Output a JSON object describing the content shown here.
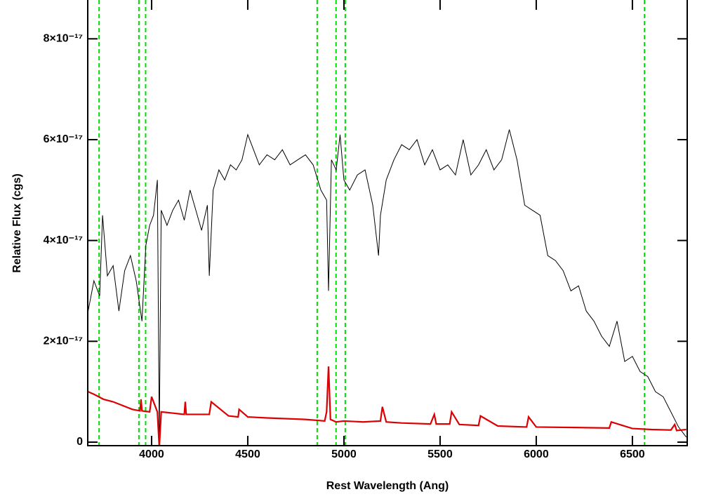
{
  "chart_data": {
    "type": "line",
    "xlabel": "Rest Wavelength (Ang)",
    "ylabel": "Relative Flux (cgs)",
    "xlim": [
      3668,
      6785
    ],
    "ylim": [
      -7e-19,
      8.77e-17
    ],
    "xticks": [
      4000,
      4500,
      5000,
      5500,
      6000,
      6500
    ],
    "yticks": [
      0,
      {
        "value": 2e-17,
        "label": "2×10⁻¹⁷"
      },
      {
        "value": 4e-17,
        "label": "4×10⁻¹⁷"
      },
      {
        "value": 6e-17,
        "label": "6×10⁻¹⁷"
      },
      {
        "value": 8e-17,
        "label": "8×10⁻¹⁷"
      }
    ],
    "line_markers": {
      "color": "#00dd00",
      "x": [
        3727,
        3934,
        3969,
        4861,
        4959,
        5007,
        6563
      ]
    },
    "series": [
      {
        "color": "#000000",
        "x": [
          3670,
          3700,
          3730,
          3745,
          3770,
          3800,
          3830,
          3860,
          3890,
          3920,
          3950,
          3970,
          3990,
          4010,
          4030,
          4040,
          4050,
          4080,
          4110,
          4140,
          4170,
          4200,
          4230,
          4260,
          4290,
          4300,
          4320,
          4350,
          4380,
          4410,
          4440,
          4470,
          4500,
          4530,
          4560,
          4600,
          4640,
          4680,
          4720,
          4760,
          4800,
          4840,
          4880,
          4910,
          4920,
          4935,
          4960,
          4980,
          5000,
          5030,
          5070,
          5110,
          5150,
          5180,
          5190,
          5220,
          5260,
          5300,
          5340,
          5380,
          5420,
          5460,
          5500,
          5540,
          5580,
          5620,
          5660,
          5700,
          5740,
          5780,
          5820,
          5860,
          5900,
          5940,
          5980,
          6020,
          6060,
          6100,
          6140,
          6180,
          6220,
          6260,
          6300,
          6340,
          6380,
          6420,
          6460,
          6500,
          6540,
          6580,
          6620,
          6660,
          6700,
          6740,
          6780
        ],
        "values": [
          2.6e-17,
          3.2e-17,
          2.9e-17,
          4.5e-17,
          3.3e-17,
          3.5e-17,
          2.6e-17,
          3.4e-17,
          3.7e-17,
          3.2e-17,
          2.4e-17,
          3.9e-17,
          4.3e-17,
          4.5e-17,
          5.2e-17,
          1e-18,
          4.6e-17,
          4.3e-17,
          4.6e-17,
          4.8e-17,
          4.4e-17,
          5e-17,
          4.6e-17,
          4.2e-17,
          4.7e-17,
          3.3e-17,
          5e-17,
          5.4e-17,
          5.2e-17,
          5.5e-17,
          5.4e-17,
          5.6e-17,
          6.1e-17,
          5.8e-17,
          5.5e-17,
          5.7e-17,
          5.6e-17,
          5.8e-17,
          5.5e-17,
          5.6e-17,
          5.7e-17,
          5.5e-17,
          5e-17,
          4.8e-17,
          3e-17,
          5.6e-17,
          5.4e-17,
          6.1e-17,
          5.2e-17,
          5e-17,
          5.3e-17,
          5.4e-17,
          4.7e-17,
          3.7e-17,
          4.5e-17,
          5.2e-17,
          5.6e-17,
          5.9e-17,
          5.8e-17,
          6e-17,
          5.5e-17,
          5.8e-17,
          5.4e-17,
          5.5e-17,
          5.3e-17,
          6e-17,
          5.3e-17,
          5.5e-17,
          5.8e-17,
          5.4e-17,
          5.6e-17,
          6.2e-17,
          5.6e-17,
          4.7e-17,
          4.6e-17,
          4.5e-17,
          3.7e-17,
          3.6e-17,
          3.4e-17,
          3e-17,
          3.1e-17,
          2.6e-17,
          2.4e-17,
          2.1e-17,
          1.9e-17,
          2.4e-17,
          1.6e-17,
          1.7e-17,
          1.4e-17,
          1.3e-17,
          1e-17,
          9e-18,
          6e-18,
          3e-18,
          1e-18
        ]
      },
      {
        "color": "#dd0000",
        "x": [
          3670,
          3700,
          3750,
          3800,
          3900,
          3940,
          3945,
          3950,
          3990,
          4000,
          4030,
          4040,
          4050,
          4100,
          4170,
          4175,
          4180,
          4190,
          4300,
          4310,
          4400,
          4450,
          4455,
          4500,
          4600,
          4800,
          4900,
          4910,
          4920,
          4930,
          4960,
          5000,
          5100,
          5190,
          5200,
          5220,
          5300,
          5450,
          5470,
          5480,
          5500,
          5550,
          5560,
          5600,
          5700,
          5710,
          5800,
          5950,
          5960,
          6000,
          6200,
          6380,
          6390,
          6500,
          6600,
          6700,
          6720,
          6730,
          6780
        ],
        "values": [
          1e-17,
          9.5e-18,
          8.5e-18,
          8e-18,
          6.5e-18,
          6.2e-18,
          8.5e-18,
          6.2e-18,
          6e-18,
          9e-18,
          6e-18,
          -1e-18,
          6e-18,
          5.8e-18,
          5.5e-18,
          8e-18,
          5.5e-18,
          5.5e-18,
          5.5e-18,
          8e-18,
          5.2e-18,
          5e-18,
          6.5e-18,
          5e-18,
          4.8e-18,
          4.5e-18,
          4.2e-18,
          6e-18,
          1.5e-17,
          4.5e-18,
          4e-18,
          4.2e-18,
          4e-18,
          4.2e-18,
          7e-18,
          4e-18,
          3.8e-18,
          3.6e-18,
          5.5e-18,
          3.6e-18,
          3.6e-18,
          3.6e-18,
          6e-18,
          3.5e-18,
          3.3e-18,
          5.2e-18,
          3.2e-18,
          3e-18,
          5e-18,
          3e-18,
          2.9e-18,
          2.8e-18,
          4e-18,
          2.7e-18,
          2.5e-18,
          2.4e-18,
          3.5e-18,
          2.3e-18,
          2.5e-18
        ]
      }
    ]
  }
}
